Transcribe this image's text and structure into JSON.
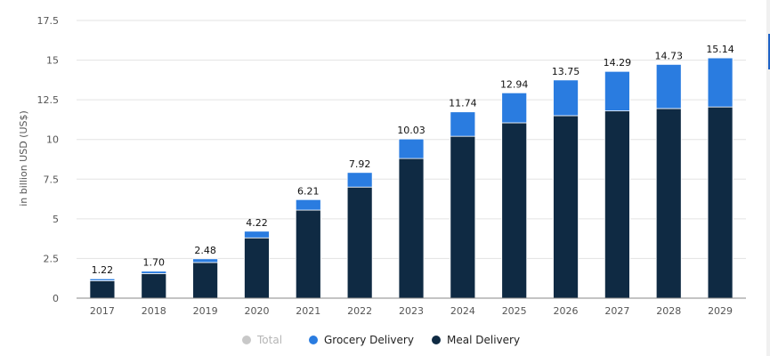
{
  "chart_data": {
    "type": "bar",
    "stacked": true,
    "ylabel": "in billion USD (US$)",
    "xlabel": "",
    "ylim": [
      0,
      17.5
    ],
    "yticks": [
      "0",
      "2.5",
      "5",
      "7.5",
      "10",
      "12.5",
      "15",
      "17.5"
    ],
    "grid": true,
    "legend_position": "bottom-center",
    "categories": [
      "2017",
      "2018",
      "2019",
      "2020",
      "2021",
      "2022",
      "2023",
      "2024",
      "2025",
      "2026",
      "2027",
      "2028",
      "2029"
    ],
    "totals": [
      "1.22",
      "1.70",
      "2.48",
      "4.22",
      "6.21",
      "7.92",
      "10.03",
      "11.74",
      "12.94",
      "13.75",
      "14.29",
      "14.73",
      "15.14"
    ],
    "series": [
      {
        "name": "Meal Delivery",
        "color": "#0f2a43",
        "values": [
          1.1,
          1.55,
          2.25,
          3.8,
          5.55,
          7.0,
          8.8,
          10.2,
          11.05,
          11.5,
          11.8,
          11.95,
          12.05
        ]
      },
      {
        "name": "Grocery Delivery",
        "color": "#2a7ce0",
        "values": [
          0.12,
          0.15,
          0.23,
          0.42,
          0.66,
          0.92,
          1.23,
          1.54,
          1.89,
          2.25,
          2.49,
          2.78,
          3.09
        ]
      }
    ],
    "legend": [
      {
        "label": "Total",
        "color": "#c8c8c8",
        "inactive": true
      },
      {
        "label": "Grocery Delivery",
        "color": "#2a7ce0",
        "inactive": false
      },
      {
        "label": "Meal Delivery",
        "color": "#0f2a43",
        "inactive": false
      }
    ]
  }
}
